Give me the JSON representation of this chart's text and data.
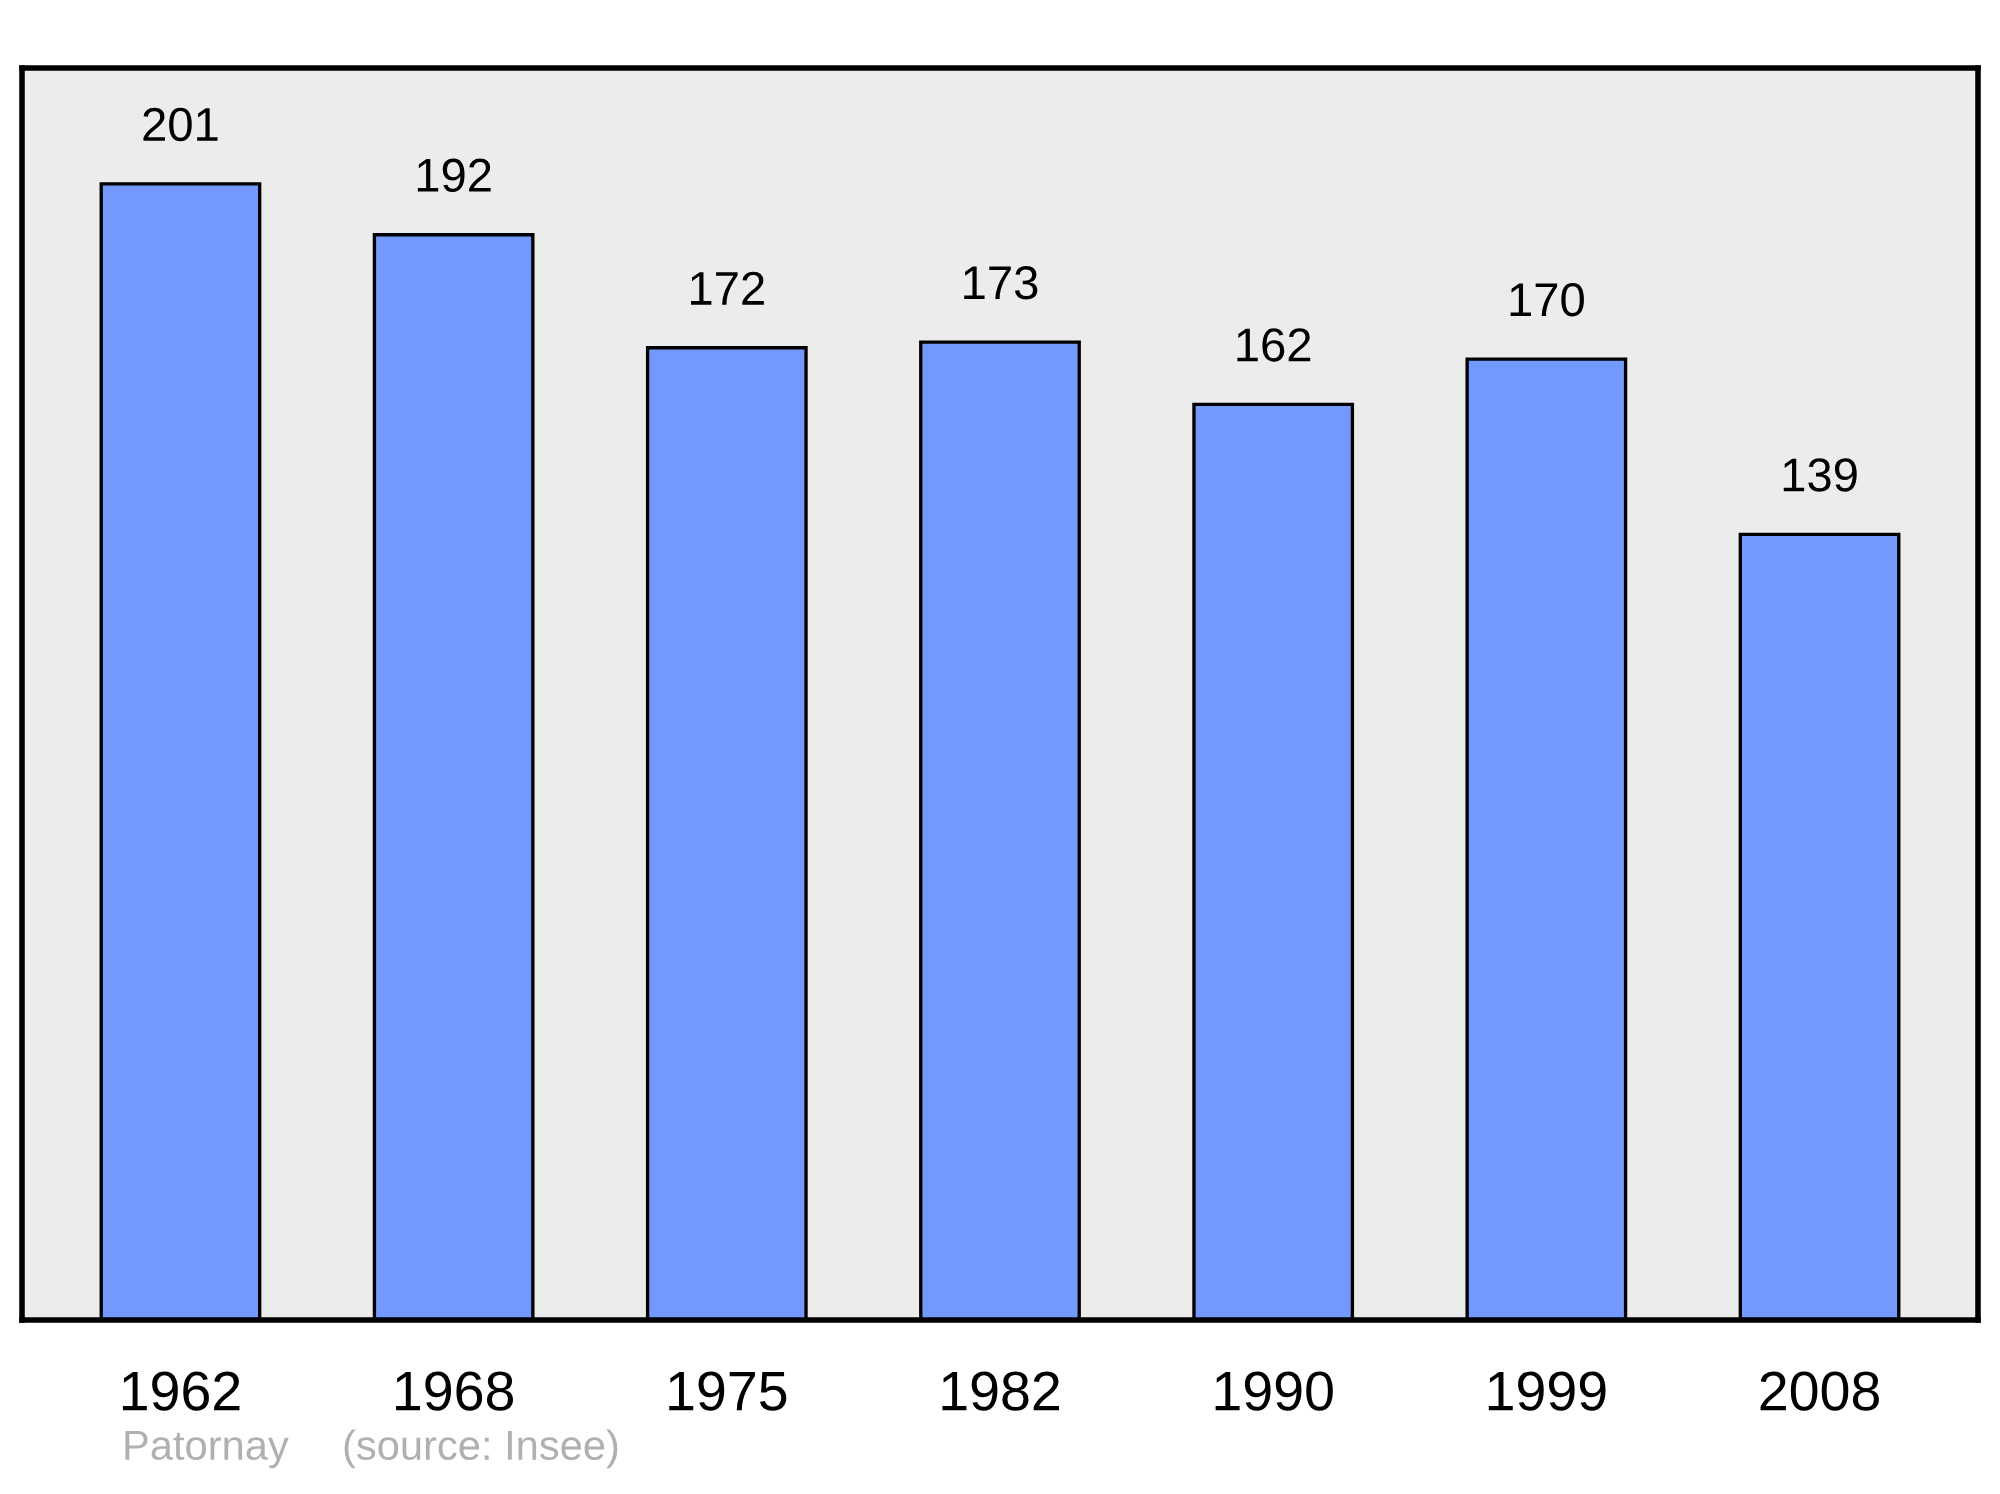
{
  "chart_data": {
    "type": "bar",
    "categories": [
      "1962",
      "1968",
      "1975",
      "1982",
      "1990",
      "1999",
      "2008"
    ],
    "values": [
      201,
      192,
      172,
      173,
      162,
      170,
      139
    ],
    "color": "#7399ff",
    "data_labels": true,
    "grid": false,
    "legend": false,
    "tick_labels": "x",
    "annotations": [
      "Patornay",
      "(source: Insee)"
    ]
  }
}
